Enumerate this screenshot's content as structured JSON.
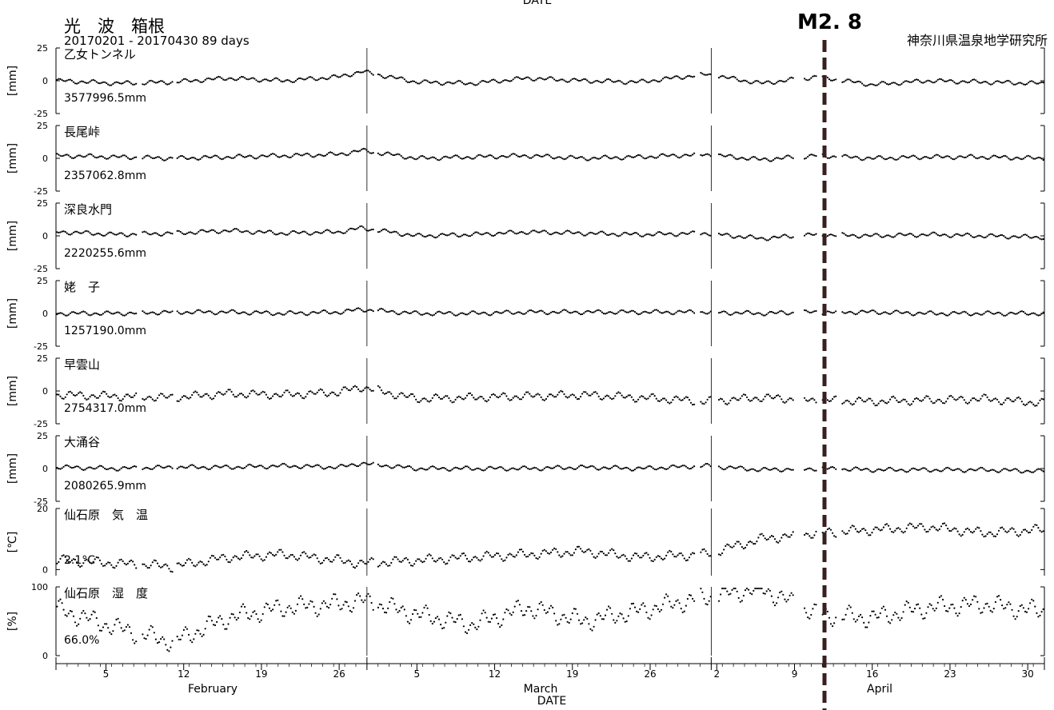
{
  "header": {
    "top_date_label": "DATE",
    "title": "光　波　箱根",
    "period": "20170201 - 20170430 89 days",
    "event_label": "M2. 8",
    "institute": "神奈川県温泉地学研究所"
  },
  "xaxis": {
    "label": "DATE",
    "months": [
      "February",
      "March",
      "April"
    ],
    "ticks": [
      {
        "day": 5,
        "label": "5"
      },
      {
        "day": 12,
        "label": "12"
      },
      {
        "day": 19,
        "label": "19"
      },
      {
        "day": 26,
        "label": "26"
      },
      {
        "day": 33,
        "label": "5"
      },
      {
        "day": 40,
        "label": "12"
      },
      {
        "day": 47,
        "label": "19"
      },
      {
        "day": 54,
        "label": "26"
      },
      {
        "day": 60,
        "label": "2"
      },
      {
        "day": 67,
        "label": "9"
      },
      {
        "day": 74,
        "label": "16"
      },
      {
        "day": 81,
        "label": "23"
      },
      {
        "day": 88,
        "label": "30"
      }
    ]
  },
  "colors": {
    "data": "#000000",
    "event_line": "#3a1f1f",
    "axis": "#000000"
  },
  "chart_data": [
    {
      "type": "scatter",
      "title": "乙女トンネル",
      "ylabel": "[mm]",
      "ylim": [
        -25,
        25
      ],
      "yticks": [
        "25",
        "0",
        "-25"
      ],
      "baseline_label": "3577996.5mm",
      "x": [
        "2017-02-01",
        "2017-02-06",
        "2017-02-11",
        "2017-02-16",
        "2017-02-21",
        "2017-02-26",
        "2017-02-28",
        "2017-03-05",
        "2017-03-10",
        "2017-03-15",
        "2017-03-20",
        "2017-03-25",
        "2017-03-31",
        "2017-04-05",
        "2017-04-10",
        "2017-04-15",
        "2017-04-20",
        "2017-04-25",
        "2017-04-30"
      ],
      "y": [
        0,
        -2,
        -1,
        2,
        0,
        3,
        7,
        -1,
        -2,
        2,
        0,
        -1,
        5,
        -2,
        3,
        -3,
        0,
        -1,
        -2
      ]
    },
    {
      "type": "scatter",
      "title": "長尾峠",
      "ylabel": "[mm]",
      "ylim": [
        -25,
        25
      ],
      "yticks": [
        "25",
        "0",
        "-25"
      ],
      "baseline_label": "2357062.8mm",
      "x": [
        "2017-02-01",
        "2017-02-06",
        "2017-02-11",
        "2017-02-16",
        "2017-02-21",
        "2017-02-26",
        "2017-02-28",
        "2017-03-05",
        "2017-03-10",
        "2017-03-15",
        "2017-03-20",
        "2017-03-25",
        "2017-03-31",
        "2017-04-05",
        "2017-04-10",
        "2017-04-15",
        "2017-04-20",
        "2017-04-25",
        "2017-04-30"
      ],
      "y": [
        2,
        1,
        0,
        1,
        2,
        3,
        6,
        0,
        1,
        2,
        0,
        1,
        3,
        -1,
        2,
        0,
        1,
        1,
        0
      ]
    },
    {
      "type": "scatter",
      "title": "深良水門",
      "ylabel": "[mm]",
      "ylim": [
        -25,
        25
      ],
      "yticks": [
        "25",
        "0",
        "-25"
      ],
      "baseline_label": "2220255.6mm",
      "x": [
        "2017-02-01",
        "2017-02-06",
        "2017-02-11",
        "2017-02-16",
        "2017-02-21",
        "2017-02-26",
        "2017-02-28",
        "2017-03-05",
        "2017-03-10",
        "2017-03-15",
        "2017-03-20",
        "2017-03-25",
        "2017-03-31",
        "2017-04-05",
        "2017-04-10",
        "2017-04-15",
        "2017-04-20",
        "2017-04-25",
        "2017-04-30"
      ],
      "y": [
        3,
        1,
        2,
        4,
        2,
        3,
        6,
        0,
        1,
        3,
        2,
        1,
        2,
        -2,
        1,
        0,
        1,
        0,
        -1
      ]
    },
    {
      "type": "scatter",
      "title": "姥　子",
      "ylabel": "[mm]",
      "ylim": [
        -25,
        25
      ],
      "yticks": [
        "25",
        "0",
        "-25"
      ],
      "baseline_label": "1257190.0mm",
      "x": [
        "2017-02-01",
        "2017-02-06",
        "2017-02-11",
        "2017-02-16",
        "2017-02-21",
        "2017-02-26",
        "2017-02-28",
        "2017-03-05",
        "2017-03-10",
        "2017-03-15",
        "2017-03-20",
        "2017-03-25",
        "2017-03-31",
        "2017-04-05",
        "2017-04-10",
        "2017-04-15",
        "2017-04-20",
        "2017-04-25",
        "2017-04-30"
      ],
      "y": [
        0,
        0,
        1,
        1,
        0,
        1,
        3,
        0,
        0,
        1,
        1,
        1,
        1,
        0,
        1,
        1,
        0,
        0,
        0
      ]
    },
    {
      "type": "scatter",
      "title": "早雲山",
      "ylabel": "[mm]",
      "ylim": [
        -25,
        25
      ],
      "yticks": [
        "25",
        "0",
        "-25"
      ],
      "baseline_label": "2754317.0mm",
      "x": [
        "2017-02-01",
        "2017-02-06",
        "2017-02-11",
        "2017-02-16",
        "2017-02-21",
        "2017-02-26",
        "2017-02-28",
        "2017-03-05",
        "2017-03-10",
        "2017-03-15",
        "2017-03-20",
        "2017-03-25",
        "2017-03-31",
        "2017-04-05",
        "2017-04-10",
        "2017-04-15",
        "2017-04-20",
        "2017-04-25",
        "2017-04-30"
      ],
      "y": [
        -3,
        -4,
        -5,
        -2,
        -3,
        -1,
        3,
        -6,
        -5,
        -4,
        -3,
        -5,
        -8,
        -5,
        -7,
        -8,
        -7,
        -6,
        -9
      ]
    },
    {
      "type": "scatter",
      "title": "大涌谷",
      "ylabel": "[mm]",
      "ylim": [
        -25,
        25
      ],
      "yticks": [
        "25",
        "0",
        "-25"
      ],
      "baseline_label": "2080265.9mm",
      "x": [
        "2017-02-01",
        "2017-02-06",
        "2017-02-11",
        "2017-02-16",
        "2017-02-21",
        "2017-02-26",
        "2017-02-28",
        "2017-03-05",
        "2017-03-10",
        "2017-03-15",
        "2017-03-20",
        "2017-03-25",
        "2017-03-31",
        "2017-04-05",
        "2017-04-10",
        "2017-04-15",
        "2017-04-20",
        "2017-04-25",
        "2017-04-30"
      ],
      "y": [
        1,
        0,
        1,
        1,
        2,
        1,
        4,
        0,
        0,
        0,
        1,
        0,
        2,
        -1,
        0,
        -1,
        -1,
        -1,
        -2
      ]
    },
    {
      "type": "line",
      "title": "仙石原　気　温",
      "ylabel": "[℃]",
      "ylim": [
        -2,
        20
      ],
      "yticks": [
        "20",
        "0"
      ],
      "baseline_label": "2.1°C",
      "x": [
        "2017-02-01",
        "2017-02-06",
        "2017-02-11",
        "2017-02-16",
        "2017-02-21",
        "2017-02-26",
        "2017-02-28",
        "2017-03-05",
        "2017-03-10",
        "2017-03-15",
        "2017-03-20",
        "2017-03-25",
        "2017-03-31",
        "2017-04-05",
        "2017-04-10",
        "2017-04-15",
        "2017-04-20",
        "2017-04-25",
        "2017-04-30"
      ],
      "y": [
        3,
        2,
        1,
        4,
        5,
        3,
        2,
        3,
        4,
        5,
        6,
        4,
        5,
        10,
        12,
        13,
        14,
        12,
        13
      ]
    },
    {
      "type": "scatter",
      "title": "仙石原　湿　度",
      "ylabel": "[%]",
      "ylim": [
        0,
        100
      ],
      "yticks": [
        "100",
        "0"
      ],
      "baseline_label": "66.0%",
      "x": [
        "2017-02-01",
        "2017-02-06",
        "2017-02-11",
        "2017-02-16",
        "2017-02-21",
        "2017-02-26",
        "2017-02-28",
        "2017-03-05",
        "2017-03-10",
        "2017-03-15",
        "2017-03-20",
        "2017-03-25",
        "2017-03-31",
        "2017-04-05",
        "2017-04-10",
        "2017-04-15",
        "2017-04-20",
        "2017-04-25",
        "2017-04-30"
      ],
      "y": [
        66,
        40,
        20,
        55,
        70,
        75,
        80,
        60,
        45,
        70,
        50,
        65,
        85,
        98,
        60,
        55,
        70,
        75,
        65
      ]
    }
  ]
}
